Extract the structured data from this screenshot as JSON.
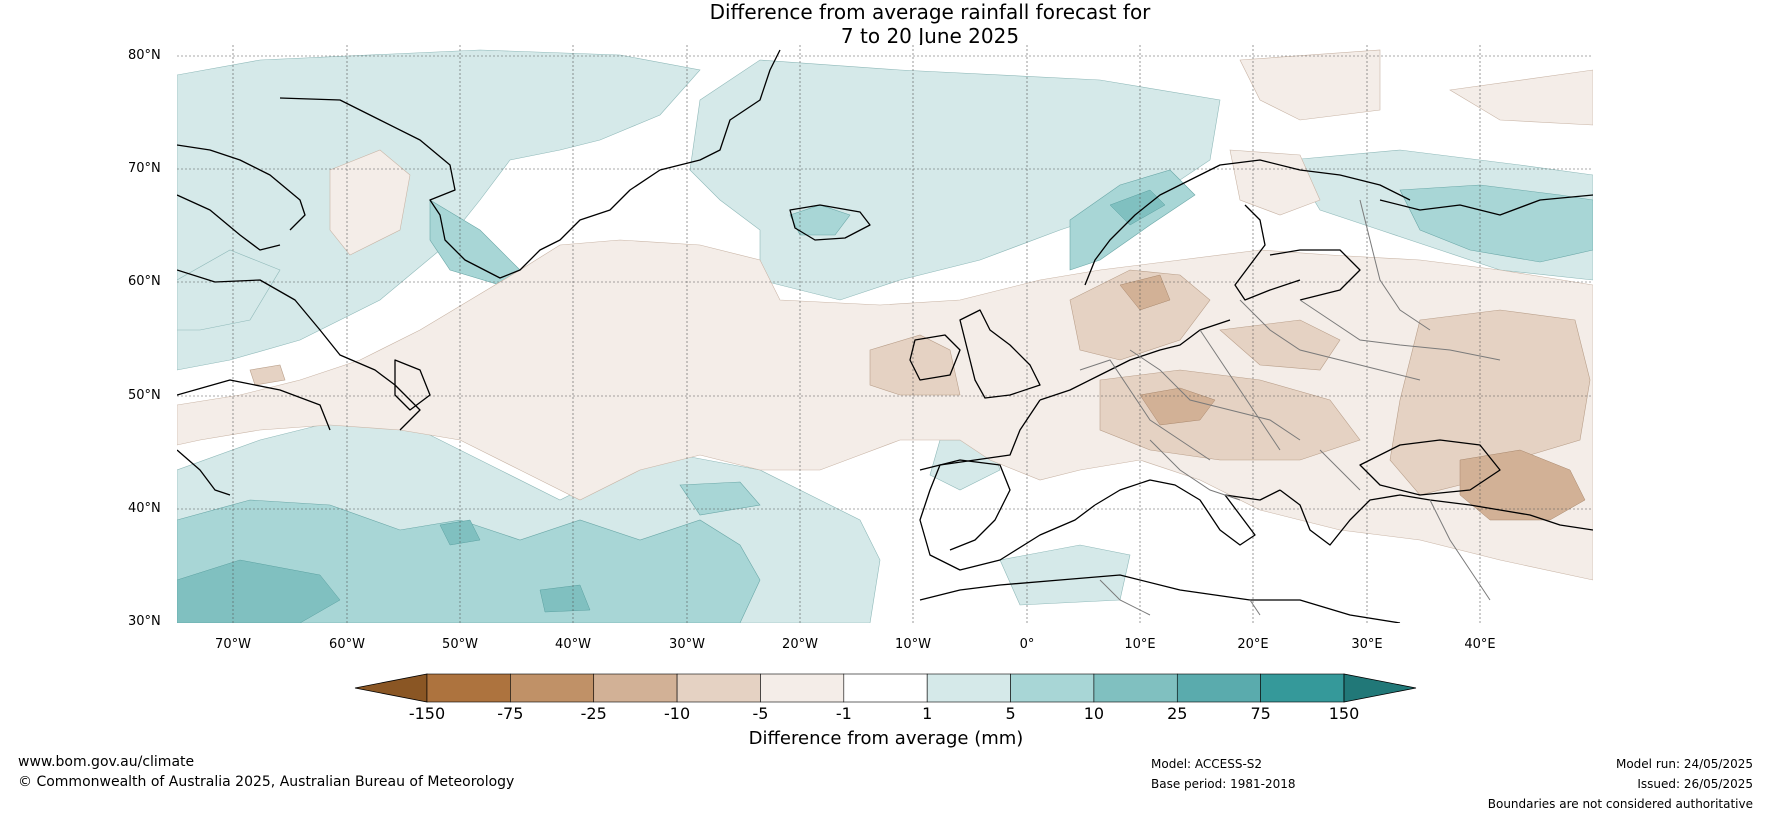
{
  "title": {
    "line1": "Difference from average rainfall forecast for",
    "line2": "7 to 20 June 2025"
  },
  "map": {
    "lat_labels": [
      "80°N",
      "70°N",
      "60°N",
      "50°N",
      "40°N",
      "30°N"
    ],
    "lon_labels": [
      "70°W",
      "60°W",
      "50°W",
      "40°W",
      "30°W",
      "20°W",
      "10°W",
      "0°",
      "10°E",
      "20°E",
      "30°E",
      "40°E"
    ],
    "extent": {
      "lon": [
        -75,
        50
      ],
      "lat": [
        30,
        81
      ]
    },
    "region": "North Atlantic and Europe"
  },
  "colorbar": {
    "label": "Difference from average (mm)",
    "ticks": [
      "-150",
      "-75",
      "-25",
      "-10",
      "-5",
      "-1",
      "1",
      "5",
      "10",
      "25",
      "75",
      "150"
    ],
    "colors": [
      "#8a5624",
      "#ad733e",
      "#c09167",
      "#d2b196",
      "#e5d2c3",
      "#f4ede8",
      "#ffffff",
      "#d5e9e9",
      "#a8d6d6",
      "#80c0c0",
      "#5aabad",
      "#35999a",
      "#217878"
    ]
  },
  "footer": {
    "website": "www.bom.gov.au/climate",
    "copyright": "© Commonwealth of Australia 2025, Australian Bureau of Meteorology",
    "model": "Model: ACCESS-S2",
    "base_period": "Base period: 1981-2018",
    "model_run": "Model run: 24/05/2025",
    "issued": "Issued: 26/05/2025",
    "disclaimer": "Boundaries are not considered authoritative"
  }
}
